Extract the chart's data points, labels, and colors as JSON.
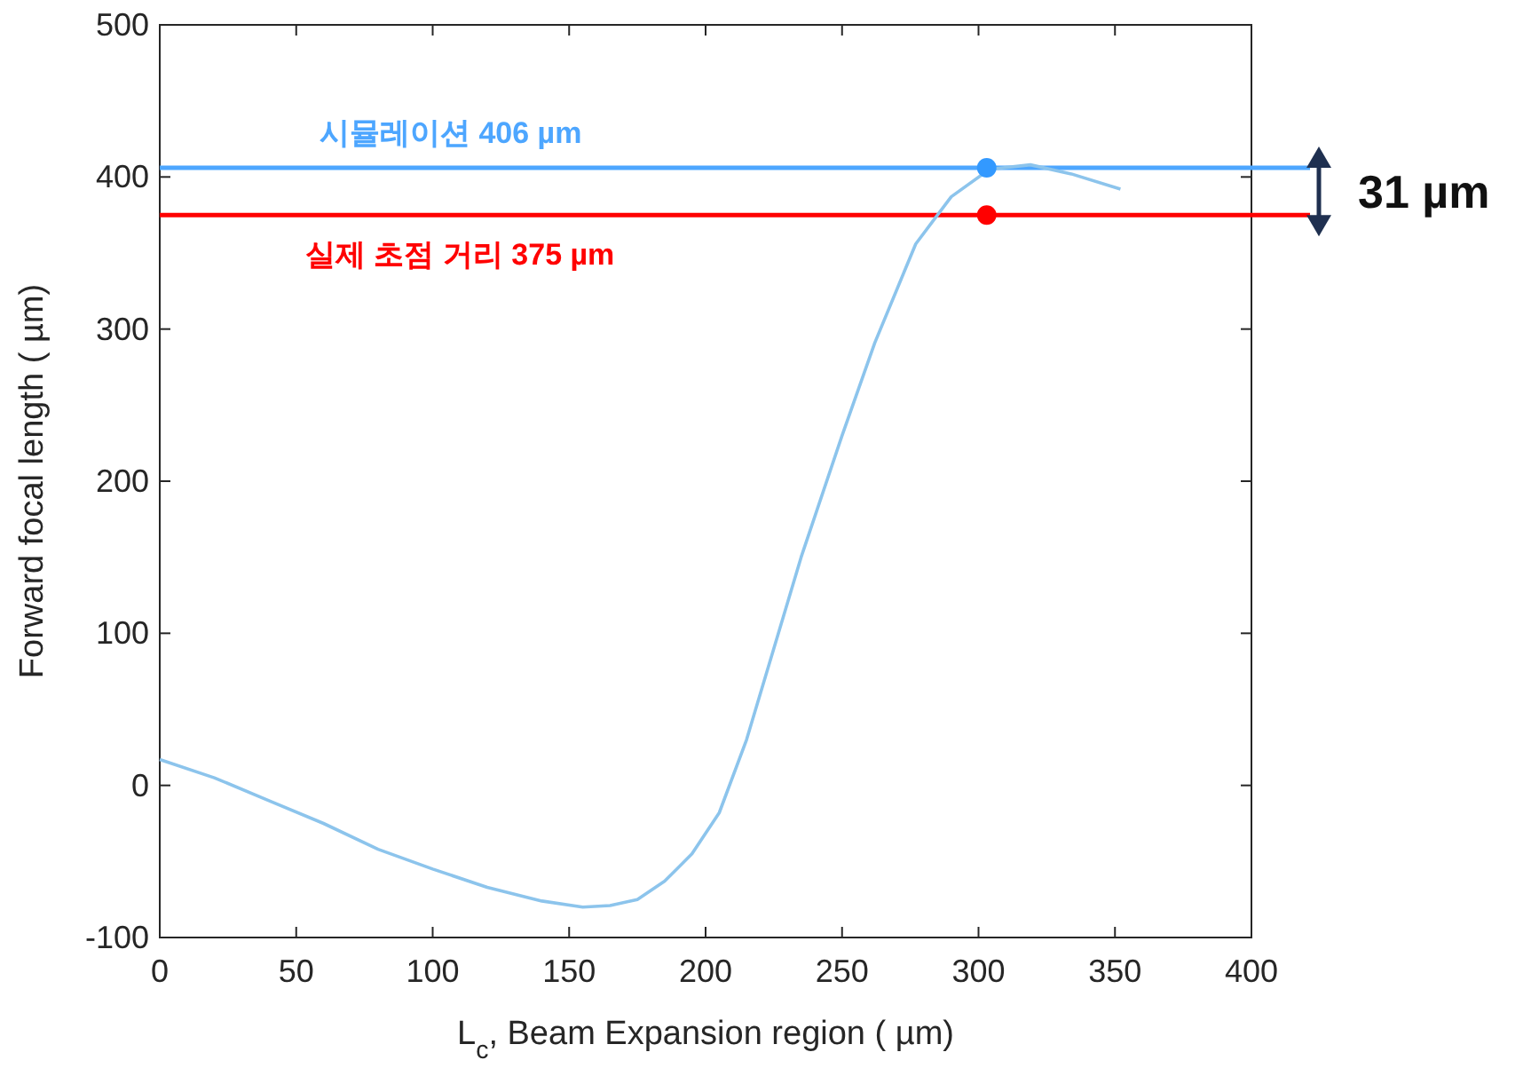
{
  "chart_data": {
    "type": "line",
    "xlabel": "L$_{c}$, Beam Expansion region ( µm)",
    "ylabel": "Forward focal length ( µm)",
    "xlim": [
      0,
      400
    ],
    "ylim": [
      -100,
      500
    ],
    "xticks": [
      0,
      50,
      100,
      150,
      200,
      250,
      300,
      350,
      400
    ],
    "yticks": [
      -100,
      0,
      100,
      200,
      300,
      400,
      500
    ],
    "grid": false,
    "marker": "none",
    "line_style": "solid",
    "series": [
      {
        "color": "#8cc4ec",
        "x": [
          0,
          20,
          40,
          60,
          80,
          100,
          120,
          140,
          155,
          165,
          175,
          185,
          195,
          205,
          215,
          225,
          235,
          250,
          262,
          277,
          290,
          304,
          319,
          334,
          352
        ],
        "values": [
          17,
          5,
          -10,
          -25,
          -42,
          -55,
          -67,
          -76,
          -80,
          -79,
          -75,
          -63,
          -45,
          -18,
          30,
          90,
          150,
          230,
          291,
          356,
          387,
          405,
          408,
          402,
          392
        ]
      },
      {
        "type": "scatter",
        "marker": "circle",
        "color": "#3399ff",
        "x": [
          303
        ],
        "values": [
          406
        ]
      },
      {
        "type": "scatter",
        "marker": "circle",
        "color": "#ff0000",
        "x": [
          303
        ],
        "values": [
          375
        ]
      }
    ],
    "ref_lines": [
      {
        "axis": "y",
        "value": 406,
        "label": "시뮬레이션 406 µm",
        "color": "#4da6ff",
        "line_style": "solid"
      },
      {
        "axis": "y",
        "value": 375,
        "label": "실제 초점 거리 375 µm",
        "color": "#ff0000",
        "line_style": "solid"
      }
    ],
    "annotations": [
      "31 µm"
    ]
  }
}
